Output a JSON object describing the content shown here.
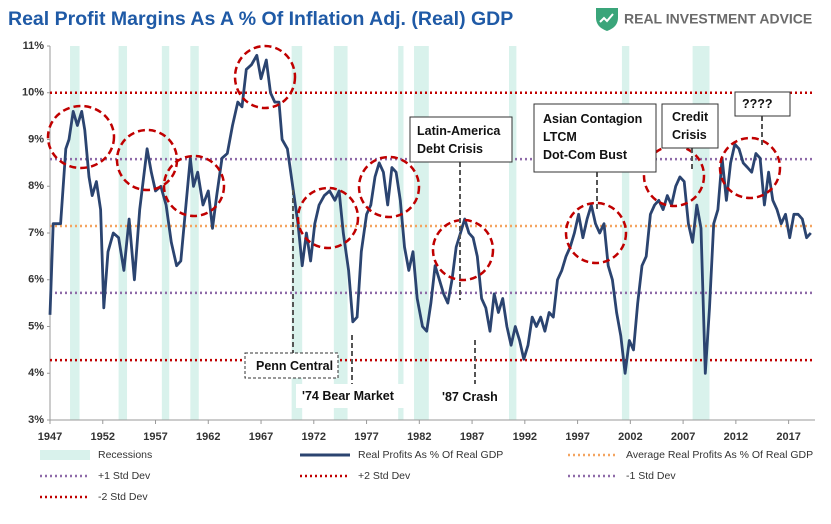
{
  "brand": "REAL INVESTMENT ADVICE",
  "chart_data": {
    "type": "line",
    "title": "Real Profit Margins As A % Of Inflation Adj. (Real) GDP",
    "xlim": [
      1947,
      2019.5
    ],
    "xticks": [
      1947,
      1952,
      1957,
      1962,
      1967,
      1972,
      1977,
      1982,
      1987,
      1992,
      1997,
      2002,
      2007,
      2012,
      2017
    ],
    "ylim": [
      3,
      11
    ],
    "yticks": [
      {
        "value": 3,
        "label": "3%"
      },
      {
        "value": 4,
        "label": "4%"
      },
      {
        "value": 5,
        "label": "5%"
      },
      {
        "value": 6,
        "label": "6%"
      },
      {
        "value": 7,
        "label": "7%"
      },
      {
        "value": 8,
        "label": "8%"
      },
      {
        "value": 9,
        "label": "9%"
      },
      {
        "value": 10,
        "label": "10%"
      },
      {
        "value": 11,
        "label": "11%"
      }
    ],
    "recessions": {
      "name": "Recessions",
      "color": "#d9f2ec",
      "periods": [
        [
          1948.9,
          1949.8
        ],
        [
          1953.5,
          1954.3
        ],
        [
          1957.6,
          1958.3
        ],
        [
          1960.3,
          1961.1
        ],
        [
          1969.9,
          1970.9
        ],
        [
          1973.9,
          1975.2
        ],
        [
          1980.0,
          1980.5
        ],
        [
          1981.5,
          1982.9
        ],
        [
          1990.5,
          1991.2
        ],
        [
          2001.2,
          2001.9
        ],
        [
          2007.9,
          2009.5
        ]
      ]
    },
    "series": [
      {
        "name": "Real Profits As % Of Real GDP",
        "color": "#2b4470",
        "x": [
          1947.0,
          1947.3,
          1948.0,
          1948.5,
          1948.8,
          1949.2,
          1949.6,
          1950.0,
          1950.3,
          1950.7,
          1951.0,
          1951.4,
          1951.8,
          1952.1,
          1952.5,
          1953.0,
          1953.5,
          1954.0,
          1954.5,
          1955.0,
          1955.5,
          1956.2,
          1956.6,
          1957.0,
          1957.5,
          1958.0,
          1958.5,
          1959.0,
          1959.4,
          1959.8,
          1960.3,
          1960.6,
          1961.0,
          1961.5,
          1962.0,
          1962.4,
          1962.8,
          1963.3,
          1963.8,
          1964.3,
          1964.8,
          1965.2,
          1965.6,
          1966.1,
          1966.6,
          1967.0,
          1967.5,
          1967.9,
          1968.3,
          1968.7,
          1969.0,
          1969.5,
          1970.0,
          1970.5,
          1970.9,
          1971.3,
          1971.7,
          1972.1,
          1972.5,
          1973.0,
          1973.5,
          1974.0,
          1974.4,
          1974.8,
          1975.3,
          1975.7,
          1976.1,
          1976.5,
          1977.0,
          1977.4,
          1977.8,
          1978.2,
          1978.6,
          1979.0,
          1979.4,
          1979.8,
          1980.2,
          1980.6,
          1981.0,
          1981.4,
          1981.8,
          1982.3,
          1982.7,
          1983.1,
          1983.5,
          1983.9,
          1984.3,
          1984.7,
          1985.1,
          1985.5,
          1985.9,
          1986.3,
          1986.7,
          1987.1,
          1987.5,
          1987.9,
          1988.3,
          1988.7,
          1989.1,
          1989.5,
          1989.9,
          1990.3,
          1990.7,
          1991.1,
          1991.5,
          1991.9,
          1992.3,
          1992.7,
          1993.1,
          1993.5,
          1993.9,
          1994.3,
          1994.7,
          1995.1,
          1995.5,
          1995.9,
          1996.3,
          1996.7,
          1997.1,
          1997.5,
          1997.9,
          1998.3,
          1998.7,
          1999.1,
          1999.5,
          1999.9,
          2000.3,
          2000.7,
          2001.1,
          2001.5,
          2001.9,
          2002.3,
          2002.7,
          2003.1,
          2003.5,
          2003.9,
          2004.3,
          2004.7,
          2005.1,
          2005.5,
          2005.9,
          2006.3,
          2006.7,
          2007.1,
          2007.5,
          2007.9,
          2008.3,
          2008.7,
          2009.1,
          2009.5,
          2009.9,
          2010.3,
          2010.7,
          2011.1,
          2011.5,
          2011.9,
          2012.3,
          2012.7,
          2013.1,
          2013.5,
          2013.9,
          2014.3,
          2014.7,
          2015.1,
          2015.5,
          2015.9,
          2016.3,
          2016.7,
          2017.1,
          2017.5,
          2017.9,
          2018.3,
          2018.7,
          2019.1
        ],
        "values": [
          5.25,
          7.2,
          7.2,
          8.8,
          9.0,
          9.6,
          9.3,
          9.6,
          9.2,
          8.2,
          7.8,
          8.1,
          7.5,
          5.4,
          6.6,
          7.0,
          6.9,
          6.2,
          7.3,
          6.0,
          7.5,
          8.8,
          8.3,
          7.9,
          8.0,
          7.6,
          6.8,
          6.3,
          6.4,
          7.4,
          8.6,
          8.0,
          8.3,
          7.6,
          7.9,
          7.1,
          7.8,
          8.6,
          8.7,
          9.3,
          9.8,
          9.7,
          10.5,
          10.6,
          10.8,
          10.3,
          10.7,
          10.0,
          9.8,
          9.8,
          9.0,
          8.8,
          8.0,
          7.2,
          6.3,
          7.0,
          6.4,
          7.2,
          7.6,
          7.8,
          7.9,
          7.7,
          7.9,
          7.0,
          6.2,
          5.1,
          5.2,
          6.6,
          7.4,
          7.6,
          8.2,
          8.5,
          8.3,
          7.6,
          8.4,
          8.3,
          7.7,
          6.7,
          6.2,
          6.6,
          5.6,
          5.0,
          4.9,
          5.5,
          6.3,
          6.0,
          5.7,
          5.5,
          6.0,
          6.7,
          7.0,
          7.3,
          7.0,
          6.9,
          6.5,
          5.6,
          5.4,
          4.9,
          5.7,
          5.3,
          5.6,
          5.0,
          4.6,
          5.0,
          4.7,
          4.3,
          4.6,
          5.2,
          5.0,
          5.2,
          4.9,
          5.3,
          5.2,
          6.0,
          6.2,
          6.5,
          6.7,
          7.0,
          7.4,
          6.9,
          7.3,
          7.6,
          7.2,
          7.0,
          7.2,
          6.3,
          6.0,
          5.3,
          4.8,
          4.0,
          4.7,
          4.5,
          5.5,
          6.3,
          6.5,
          7.4,
          7.6,
          7.7,
          7.5,
          7.8,
          7.6,
          8.0,
          8.2,
          8.1,
          7.2,
          6.8,
          7.6,
          7.1,
          4.0,
          5.4,
          7.2,
          7.5,
          8.6,
          7.7,
          8.5,
          8.9,
          8.8,
          8.5,
          8.4,
          8.3,
          8.7,
          8.6,
          7.6,
          8.3,
          7.7,
          7.5,
          7.2,
          7.4,
          6.9,
          7.4,
          7.4,
          7.3,
          6.9,
          7.0
        ]
      }
    ],
    "reference_lines": [
      {
        "name": "Average Real Profits As % Of Real GDP",
        "value": 7.15,
        "color": "#f4a460"
      },
      {
        "name": "+1 Std Dev",
        "value": 8.58,
        "color": "#8e6aa8"
      },
      {
        "name": "+2 Std Dev",
        "value": 10.0,
        "color": "#c00000"
      },
      {
        "name": "-1 Std Dev",
        "value": 5.72,
        "color": "#8e6aa8"
      },
      {
        "name": "-2 Std Dev",
        "value": 4.28,
        "color": "#c00000"
      }
    ],
    "annotations": [
      [
        "Penn Central"
      ],
      [
        "'74 Bear Market"
      ],
      [
        "Latin-America",
        "Debt Crisis"
      ],
      [
        "'87 Crash"
      ],
      [
        "Asian Contagion",
        "LTCM",
        "Dot-Com Bust"
      ],
      [
        "Credit",
        "Crisis"
      ],
      [
        "????"
      ]
    ]
  }
}
